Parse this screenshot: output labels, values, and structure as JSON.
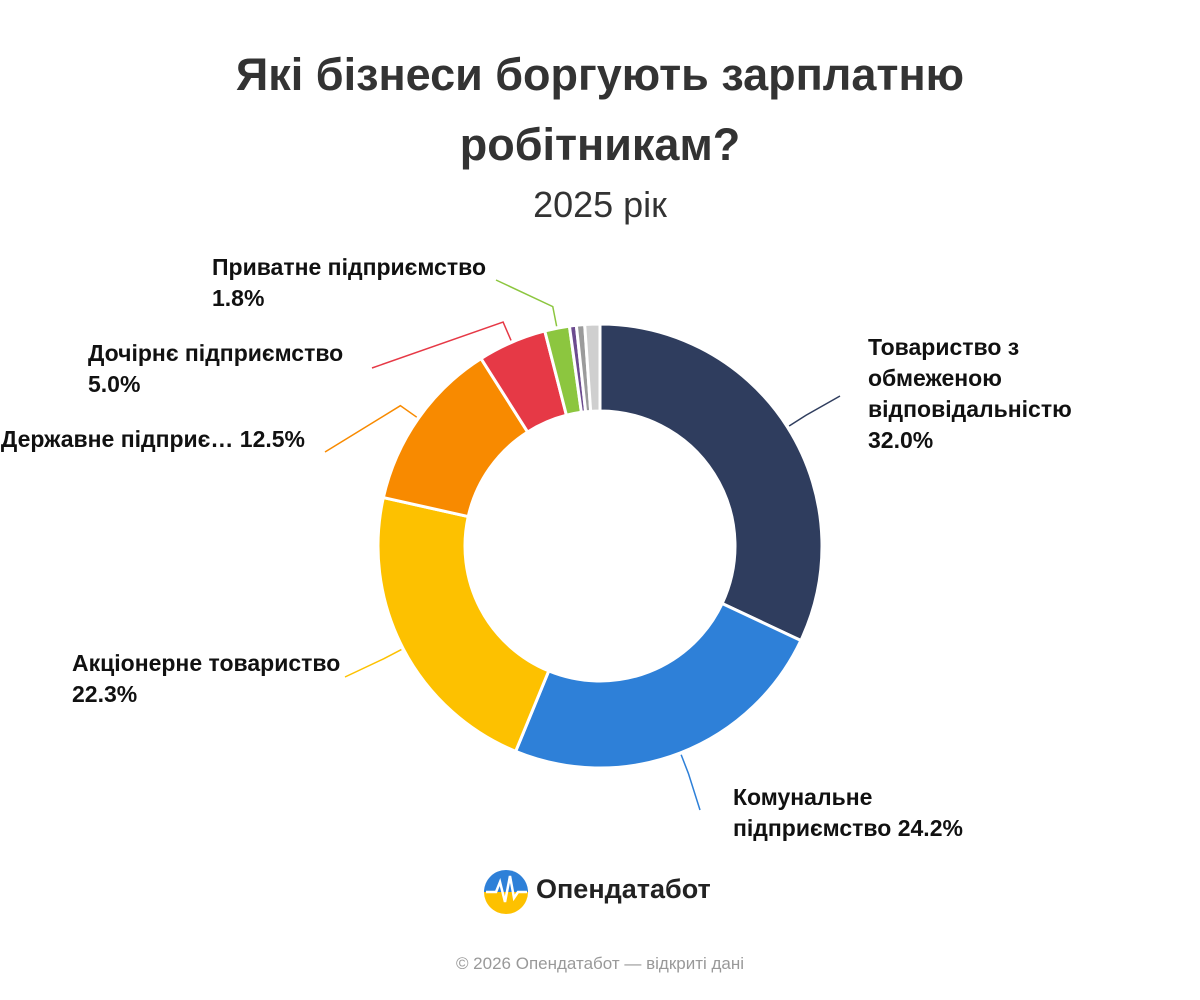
{
  "chart_data": {
    "type": "donut",
    "title": "Які бізнеси боргують зарплатню робітникам?",
    "subtitle": "2025 рік",
    "categories": [
      "Товариство з обмеженою відповідальністю",
      "Комунальне підприємство",
      "Акціонерне товариство",
      "Державне підприє…",
      "Дочірнє підприємство",
      "Приватне підприємство",
      null,
      null,
      null
    ],
    "values": [
      32.0,
      24.2,
      22.3,
      12.5,
      5.0,
      1.8,
      0.5,
      0.6,
      1.1
    ],
    "value_labels": [
      "32.0%",
      "24.2%",
      "22.3%",
      "12.5%",
      "5.0%",
      "1.8%",
      null,
      null,
      null
    ],
    "colors": [
      "#2f3d5e",
      "#2e80d8",
      "#fdc100",
      "#f88a00",
      "#e63946",
      "#8cc63f",
      "#6c4b8f",
      "#9b9b9b",
      "#cfcfcf"
    ]
  },
  "footer": {
    "brand": "Опендатабот",
    "copyright": "© 2026 Опендатабот — відкриті дані"
  }
}
